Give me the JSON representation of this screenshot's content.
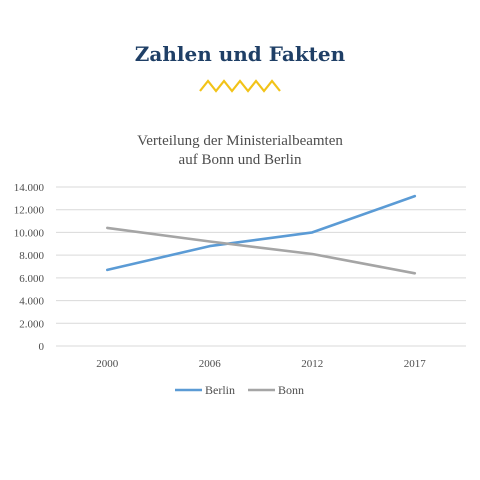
{
  "header": {
    "title": "Zahlen und Fakten"
  },
  "colors": {
    "heading": "#1f3f66",
    "zigzag": "#f2c318",
    "berlin": "#5b9bd5",
    "bonn": "#a5a5a5",
    "grid": "#d9d9d9"
  },
  "chart_data": {
    "type": "line",
    "title_line1": "Verteilung der Ministerialbeamten",
    "title_line2": "auf Bonn und Berlin",
    "categories": [
      "2000",
      "2006",
      "2012",
      "2017"
    ],
    "y_ticks": [
      "0",
      "2.000",
      "4.000",
      "6.000",
      "8.000",
      "10.000",
      "12.000",
      "14.000"
    ],
    "ylim": [
      0,
      14000
    ],
    "grid": true,
    "legend_position": "bottom",
    "series": [
      {
        "name": "Berlin",
        "color": "#5b9bd5",
        "values": [
          6700,
          8800,
          10000,
          13200
        ]
      },
      {
        "name": "Bonn",
        "color": "#a5a5a5",
        "values": [
          10400,
          9200,
          8100,
          6400
        ]
      }
    ]
  }
}
